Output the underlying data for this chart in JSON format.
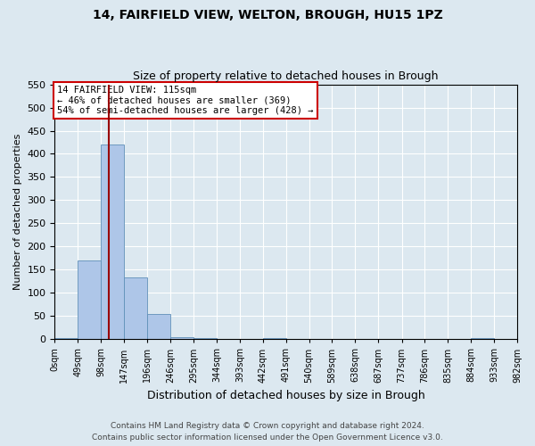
{
  "title1": "14, FAIRFIELD VIEW, WELTON, BROUGH, HU15 1PZ",
  "title2": "Size of property relative to detached houses in Brough",
  "xlabel": "Distribution of detached houses by size in Brough",
  "ylabel": "Number of detached properties",
  "annotation_line1": "14 FAIRFIELD VIEW: 115sqm",
  "annotation_line2": "← 46% of detached houses are smaller (369)",
  "annotation_line3": "54% of semi-detached houses are larger (428) →",
  "property_size_sqm": 115,
  "bin_edges": [
    0,
    49,
    98,
    147,
    196,
    246,
    295,
    344,
    393,
    442,
    491,
    540,
    589,
    638,
    687,
    737,
    786,
    835,
    884,
    933,
    982
  ],
  "bin_labels": [
    "0sqm",
    "49sqm",
    "98sqm",
    "147sqm",
    "196sqm",
    "246sqm",
    "295sqm",
    "344sqm",
    "393sqm",
    "442sqm",
    "491sqm",
    "540sqm",
    "589sqm",
    "638sqm",
    "687sqm",
    "737sqm",
    "786sqm",
    "835sqm",
    "884sqm",
    "933sqm",
    "982sqm"
  ],
  "bar_heights": [
    3,
    170,
    420,
    133,
    55,
    5,
    2,
    0,
    0,
    3,
    0,
    0,
    0,
    0,
    0,
    0,
    0,
    0,
    3,
    0,
    0
  ],
  "bar_color": "#aec6e8",
  "bar_edgecolor": "#6090b8",
  "vline_color": "#990000",
  "vline_x": 115,
  "ylim": [
    0,
    550
  ],
  "yticks": [
    0,
    50,
    100,
    150,
    200,
    250,
    300,
    350,
    400,
    450,
    500,
    550
  ],
  "bg_color": "#dce8f0",
  "plot_bg_color": "#dce8f0",
  "annotation_box_edgecolor": "#cc0000",
  "annotation_box_facecolor": "#ffffff",
  "footer_line1": "Contains HM Land Registry data © Crown copyright and database right 2024.",
  "footer_line2": "Contains public sector information licensed under the Open Government Licence v3.0."
}
